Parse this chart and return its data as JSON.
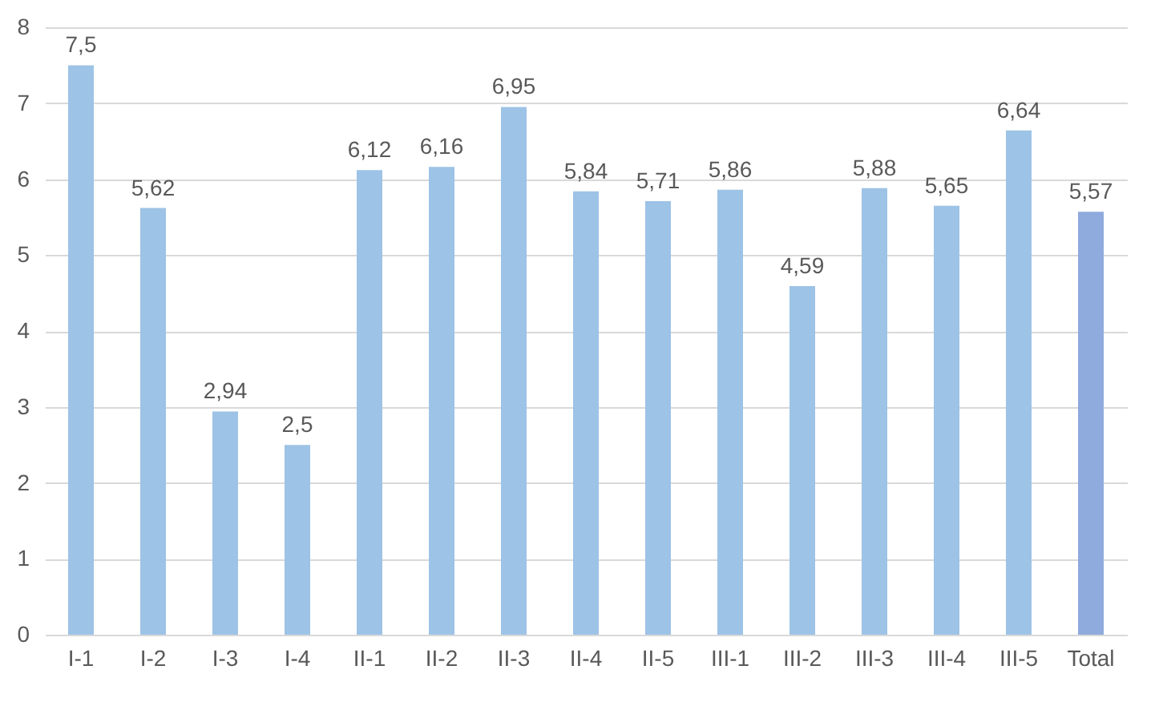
{
  "chart_data": {
    "type": "bar",
    "categories": [
      "I-1",
      "I-2",
      "I-3",
      "I-4",
      "II-1",
      "II-2",
      "II-3",
      "II-4",
      "II-5",
      "III-1",
      "III-2",
      "III-3",
      "III-4",
      "III-5",
      "Total"
    ],
    "values": [
      7.5,
      5.62,
      2.94,
      2.5,
      6.12,
      6.16,
      6.95,
      5.84,
      5.71,
      5.86,
      4.59,
      5.88,
      5.65,
      6.64,
      5.57
    ],
    "value_labels": [
      "7,5",
      "5,62",
      "2,94",
      "2,5",
      "6,12",
      "6,16",
      "6,95",
      "5,84",
      "5,71",
      "5,86",
      "4,59",
      "5,88",
      "5,65",
      "6,64",
      "5,57"
    ],
    "colors": [
      "#9dc3e6",
      "#9dc3e6",
      "#9dc3e6",
      "#9dc3e6",
      "#9dc3e6",
      "#9dc3e6",
      "#9dc3e6",
      "#9dc3e6",
      "#9dc3e6",
      "#9dc3e6",
      "#9dc3e6",
      "#9dc3e6",
      "#9dc3e6",
      "#9dc3e6",
      "#8faadc"
    ],
    "ylim": [
      0,
      8
    ],
    "yticks": [
      0,
      1,
      2,
      3,
      4,
      5,
      6,
      7,
      8
    ],
    "grid": "y"
  }
}
